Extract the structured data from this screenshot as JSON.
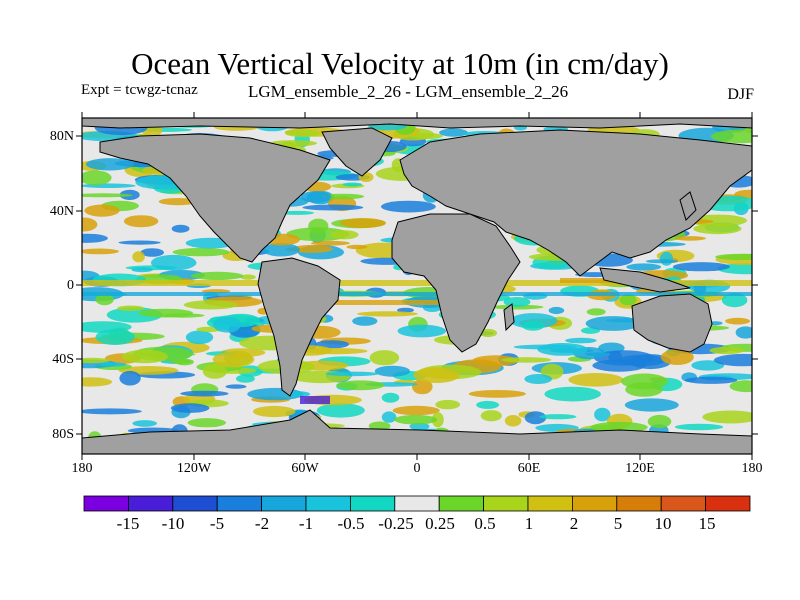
{
  "title": "Ocean Vertical Velocity at 10m (in cm/day)",
  "experiment": "Expt = tcwgz-tcnaz",
  "run_label": "LGM_ensemble_2_26 - LGM_ensemble_2_26",
  "season": "DJF",
  "y_axis_ticks": [
    "80N",
    "40N",
    "0",
    "40S",
    "80S"
  ],
  "x_axis_ticks": [
    "180",
    "120W",
    "60W",
    "0",
    "60E",
    "120E",
    "180"
  ],
  "colorbar": {
    "labels": [
      "-15",
      "-10",
      "-5",
      "-2",
      "-1",
      "-0.5",
      "-0.25",
      "0.25",
      "0.5",
      "1",
      "2",
      "5",
      "10",
      "15"
    ],
    "colors": [
      "#7a00e0",
      "#4a1ed8",
      "#1e4fd2",
      "#1a7fdc",
      "#17a6dc",
      "#19c3dc",
      "#12d7c2",
      "#e8e8e8",
      "#6ad629",
      "#a8d41c",
      "#d0c012",
      "#d8a10b",
      "#d77d0a",
      "#d9571a",
      "#d93010"
    ]
  },
  "map_colors": {
    "land": "#a0a0a0",
    "ocean_background": "#e8e8e8",
    "coastline": "#000000"
  }
}
